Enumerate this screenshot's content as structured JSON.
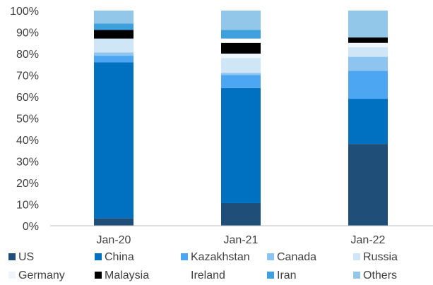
{
  "chart_data": {
    "type": "bar",
    "stacked": true,
    "percent_stacked": true,
    "categories": [
      "Jan-20",
      "Jan-21",
      "Jan-22"
    ],
    "y_ticks": [
      "0%",
      "10%",
      "20%",
      "30%",
      "40%",
      "50%",
      "60%",
      "70%",
      "80%",
      "90%",
      "100%"
    ],
    "ylim": [
      0,
      100
    ],
    "grid": false,
    "legend_position": "bottom",
    "series": [
      {
        "name": "US",
        "color": "#1F4E79",
        "values": [
          3.5,
          10.5,
          38
        ]
      },
      {
        "name": "China",
        "color": "#0070C0",
        "values": [
          72.5,
          53.5,
          21
        ]
      },
      {
        "name": "Kazakhstan",
        "color": "#4DA6F2",
        "values": [
          3,
          6,
          13
        ]
      },
      {
        "name": "Canada",
        "color": "#8EC5F0",
        "values": [
          1.5,
          1,
          6.5
        ]
      },
      {
        "name": "Russia",
        "color": "#CFE6F7",
        "values": [
          6.5,
          7,
          4.5
        ]
      },
      {
        "name": "Germany",
        "color": "#EEF6FC",
        "values": [
          0,
          2,
          2
        ]
      },
      {
        "name": "Malaysia",
        "color": "#000000",
        "values": [
          4,
          5,
          2.5
        ]
      },
      {
        "name": "Ireland",
        "color": "#FFFFFF",
        "values": [
          0,
          2,
          0
        ]
      },
      {
        "name": "Iran",
        "color": "#3EA0DC",
        "values": [
          3,
          4,
          0
        ]
      },
      {
        "name": "Others",
        "color": "#92C7EA",
        "values": [
          6,
          9,
          12.5
        ]
      }
    ]
  }
}
